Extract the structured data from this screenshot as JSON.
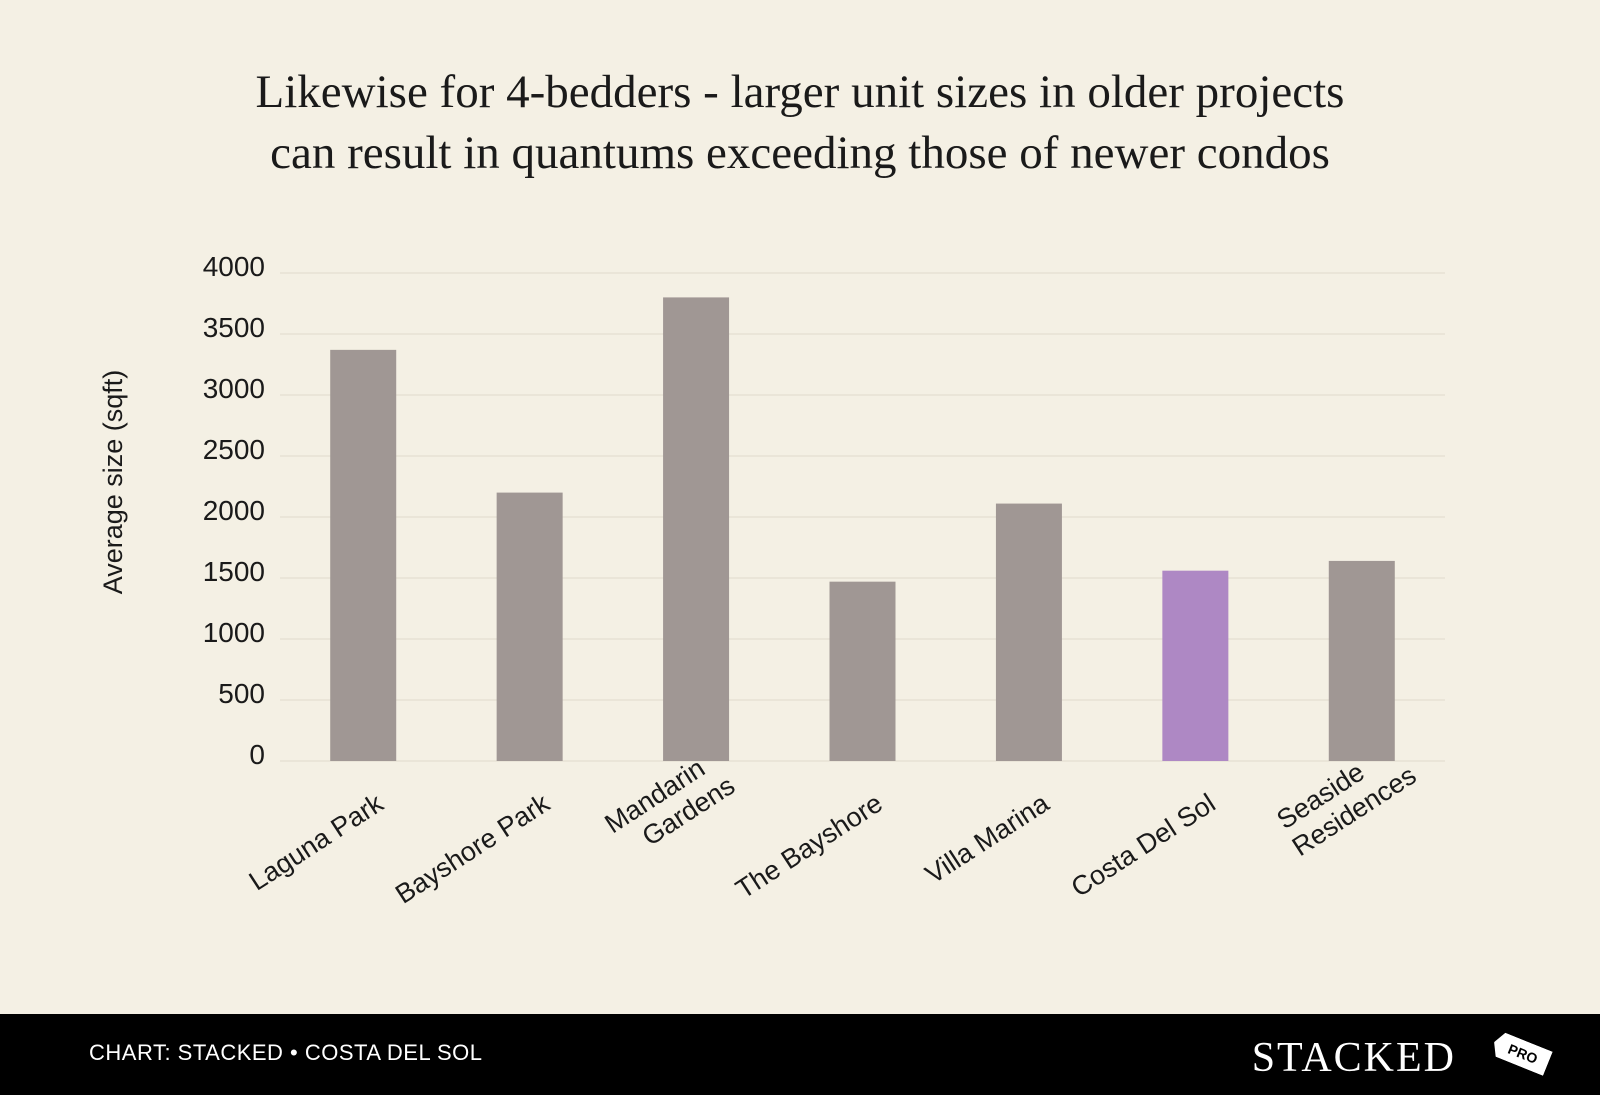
{
  "chart_data": {
    "type": "bar",
    "title_lines": [
      "Likewise for 4-bedders - larger unit sizes in older projects",
      "can result in quantums exceeding those of newer condos"
    ],
    "ylabel": "Average size (sqft)",
    "xlabel": "",
    "ylim": [
      0,
      4000
    ],
    "yticks": [
      0,
      500,
      1000,
      1500,
      2000,
      2500,
      3000,
      3500,
      4000
    ],
    "grid": true,
    "categories": [
      [
        "Laguna Park"
      ],
      [
        "Bayshore Park"
      ],
      [
        "Mandarin",
        "Gardens"
      ],
      [
        "The Bayshore"
      ],
      [
        "Villa Marina"
      ],
      [
        "Costa Del Sol"
      ],
      [
        "Seaside",
        "Residences"
      ]
    ],
    "values": [
      3370,
      2200,
      3800,
      1470,
      2110,
      1560,
      1640
    ],
    "highlight_index": 5,
    "colors": {
      "bar": "#a09794",
      "highlight": "#ae88c4",
      "grid": "#e6e1d4",
      "background": "#f4f0e4"
    }
  },
  "footer": {
    "credit": "CHART: STACKED • COSTA DEL SOL",
    "brand": "STACKED",
    "brand_tag": "PRO"
  }
}
